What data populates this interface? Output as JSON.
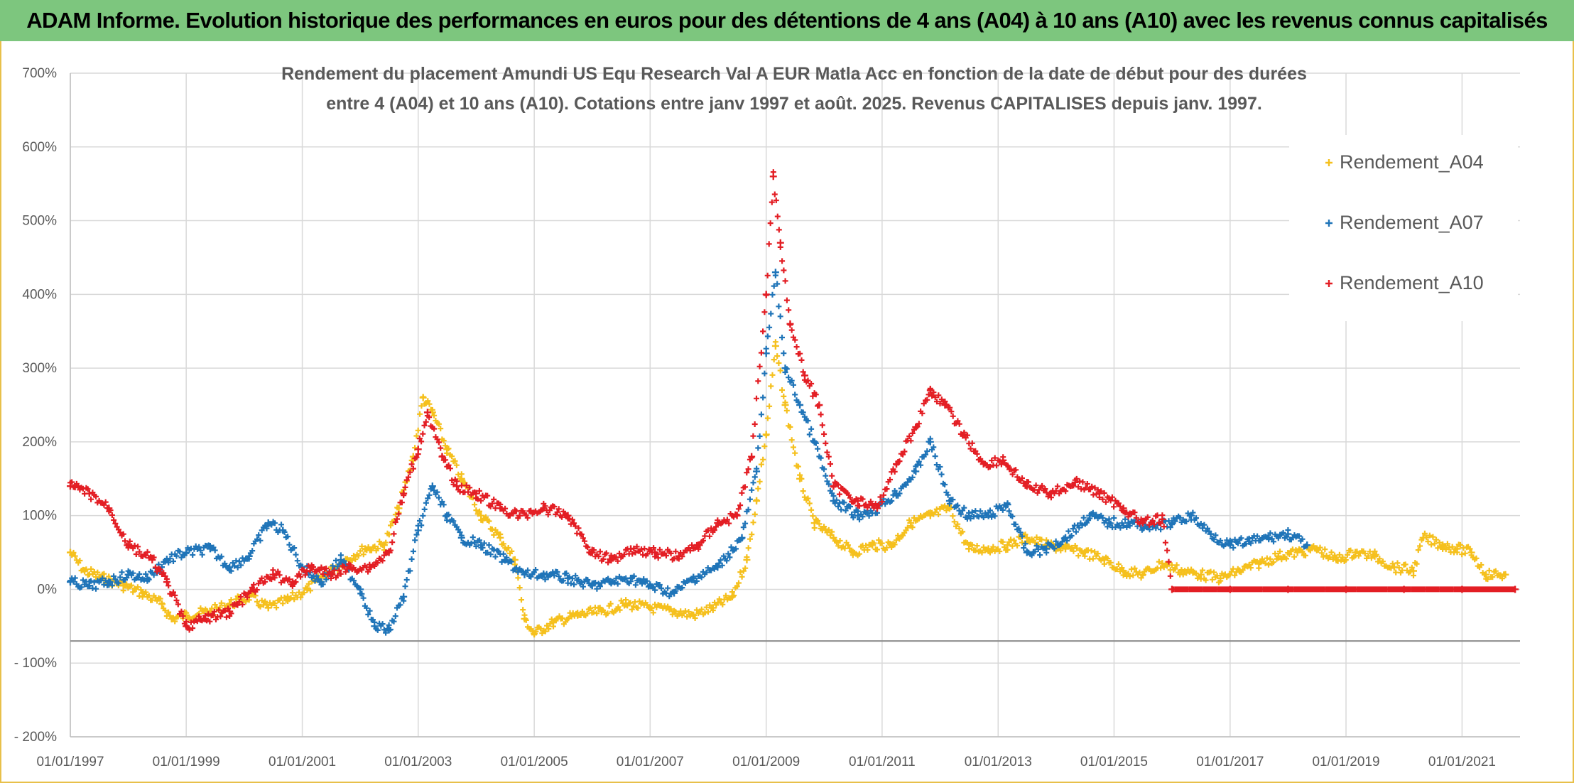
{
  "banner": "ADAM Informe. Evolution historique des performances en euros pour des détentions de 4 ans (A04) à 10 ans (A10) avec les revenus connus capitalisés",
  "chart_data": {
    "type": "scatter",
    "title_lines": [
      "Rendement du placement Amundi US Equ Research Val A EUR Matla Acc en fonction de la date de début pour des durées",
      "entre 4 (A04) et 10 ans (A10). Cotations entre janv 1997 et août. 2025. Revenus CAPITALISES depuis janv. 1997."
    ],
    "xlabel": "",
    "ylabel": "",
    "xlim": [
      "1997-01-01",
      "2022-01-01"
    ],
    "ylim": [
      -200,
      700
    ],
    "x_tick_labels": [
      "01/01/1997",
      "01/01/1999",
      "01/01/2001",
      "01/01/2003",
      "01/01/2005",
      "01/01/2007",
      "01/01/2009",
      "01/01/2011",
      "01/01/2013",
      "01/01/2015",
      "01/01/2017",
      "01/01/2019",
      "01/01/2021"
    ],
    "y_tick_labels": [
      "700%",
      "600%",
      "500%",
      "400%",
      "300%",
      "200%",
      "100%",
      "0%",
      "- 100%",
      "- 200%"
    ],
    "y_tick_values": [
      700,
      600,
      500,
      400,
      300,
      200,
      100,
      0,
      -100,
      -200
    ],
    "grid": true,
    "legend_position": "top-right",
    "marker": "+",
    "series": [
      {
        "name": "Rendement_A04",
        "color": "#f5c01d",
        "points": [
          [
            "1997-01-01",
            50
          ],
          [
            "1997-04-01",
            25
          ],
          [
            "1997-08-01",
            15
          ],
          [
            "1997-12-01",
            5
          ],
          [
            "1998-04-01",
            -5
          ],
          [
            "1998-08-01",
            -20
          ],
          [
            "1998-10-01",
            -40
          ],
          [
            "1999-01-01",
            -35
          ],
          [
            "1999-06-01",
            -30
          ],
          [
            "1999-10-01",
            -20
          ],
          [
            "2000-02-01",
            -10
          ],
          [
            "2000-06-01",
            -25
          ],
          [
            "2000-10-01",
            -15
          ],
          [
            "2001-02-01",
            0
          ],
          [
            "2001-06-01",
            20
          ],
          [
            "2001-10-01",
            40
          ],
          [
            "2002-02-01",
            55
          ],
          [
            "2002-06-01",
            60
          ],
          [
            "2002-09-01",
            110
          ],
          [
            "2002-12-01",
            180
          ],
          [
            "2003-02-01",
            260
          ],
          [
            "2003-04-01",
            240
          ],
          [
            "2003-07-01",
            190
          ],
          [
            "2003-10-01",
            150
          ],
          [
            "2004-02-01",
            100
          ],
          [
            "2004-06-01",
            70
          ],
          [
            "2004-09-01",
            40
          ],
          [
            "2004-11-01",
            -40
          ],
          [
            "2005-01-01",
            -60
          ],
          [
            "2005-05-01",
            -45
          ],
          [
            "2005-10-01",
            -35
          ],
          [
            "2006-03-01",
            -30
          ],
          [
            "2006-08-01",
            -20
          ],
          [
            "2007-01-01",
            -25
          ],
          [
            "2007-06-01",
            -30
          ],
          [
            "2007-10-01",
            -35
          ],
          [
            "2008-02-01",
            -25
          ],
          [
            "2008-06-01",
            -10
          ],
          [
            "2008-09-01",
            40
          ],
          [
            "2008-11-01",
            120
          ],
          [
            "2009-01-01",
            210
          ],
          [
            "2009-03-01",
            330
          ],
          [
            "2009-05-01",
            250
          ],
          [
            "2009-08-01",
            150
          ],
          [
            "2009-11-01",
            90
          ],
          [
            "2010-03-01",
            70
          ],
          [
            "2010-07-01",
            50
          ],
          [
            "2010-11-01",
            60
          ],
          [
            "2011-03-01",
            60
          ],
          [
            "2011-07-01",
            90
          ],
          [
            "2011-11-01",
            100
          ],
          [
            "2012-03-01",
            110
          ],
          [
            "2012-07-01",
            55
          ],
          [
            "2012-11-01",
            55
          ],
          [
            "2013-03-01",
            60
          ],
          [
            "2013-07-01",
            70
          ],
          [
            "2013-11-01",
            60
          ],
          [
            "2014-03-01",
            55
          ],
          [
            "2014-07-01",
            50
          ],
          [
            "2014-11-01",
            40
          ],
          [
            "2015-03-01",
            25
          ],
          [
            "2015-07-01",
            20
          ],
          [
            "2015-11-01",
            35
          ],
          [
            "2016-03-01",
            25
          ],
          [
            "2016-07-01",
            20
          ],
          [
            "2016-11-01",
            15
          ],
          [
            "2017-03-01",
            25
          ],
          [
            "2017-07-01",
            35
          ],
          [
            "2017-11-01",
            45
          ],
          [
            "2018-03-01",
            50
          ],
          [
            "2018-07-01",
            55
          ],
          [
            "2018-11-01",
            40
          ],
          [
            "2019-03-01",
            50
          ],
          [
            "2019-07-01",
            45
          ],
          [
            "2019-11-01",
            30
          ],
          [
            "2020-03-01",
            25
          ],
          [
            "2020-05-01",
            70
          ],
          [
            "2020-09-01",
            60
          ],
          [
            "2020-12-01",
            55
          ],
          [
            "2021-03-01",
            50
          ],
          [
            "2021-06-01",
            20
          ],
          [
            "2021-10-01",
            20
          ]
        ]
      },
      {
        "name": "Rendement_A07",
        "color": "#1f74b8",
        "points": [
          [
            "1997-01-01",
            10
          ],
          [
            "1997-05-01",
            5
          ],
          [
            "1997-09-01",
            10
          ],
          [
            "1998-01-01",
            20
          ],
          [
            "1998-05-01",
            15
          ],
          [
            "1998-09-01",
            40
          ],
          [
            "1999-01-01",
            50
          ],
          [
            "1999-06-01",
            55
          ],
          [
            "1999-10-01",
            30
          ],
          [
            "2000-02-01",
            45
          ],
          [
            "2000-06-01",
            90
          ],
          [
            "2000-09-01",
            80
          ],
          [
            "2001-01-01",
            30
          ],
          [
            "2001-05-01",
            10
          ],
          [
            "2001-09-01",
            40
          ],
          [
            "2002-01-01",
            0
          ],
          [
            "2002-04-01",
            -50
          ],
          [
            "2002-07-01",
            -55
          ],
          [
            "2002-10-01",
            -10
          ],
          [
            "2003-01-01",
            80
          ],
          [
            "2003-04-01",
            140
          ],
          [
            "2003-07-01",
            100
          ],
          [
            "2003-10-01",
            70
          ],
          [
            "2004-02-01",
            60
          ],
          [
            "2004-07-01",
            40
          ],
          [
            "2004-11-01",
            20
          ],
          [
            "2005-03-01",
            20
          ],
          [
            "2005-08-01",
            15
          ],
          [
            "2006-01-01",
            5
          ],
          [
            "2006-05-01",
            10
          ],
          [
            "2006-09-01",
            15
          ],
          [
            "2007-01-01",
            5
          ],
          [
            "2007-06-01",
            -5
          ],
          [
            "2007-10-01",
            15
          ],
          [
            "2008-03-01",
            30
          ],
          [
            "2008-08-01",
            70
          ],
          [
            "2008-11-01",
            160
          ],
          [
            "2009-01-01",
            320
          ],
          [
            "2009-03-01",
            430
          ],
          [
            "2009-05-01",
            300
          ],
          [
            "2009-08-01",
            250
          ],
          [
            "2009-11-01",
            200
          ],
          [
            "2010-03-01",
            120
          ],
          [
            "2010-08-01",
            100
          ],
          [
            "2010-12-01",
            110
          ],
          [
            "2011-04-01",
            130
          ],
          [
            "2011-08-01",
            160
          ],
          [
            "2011-11-01",
            200
          ],
          [
            "2012-03-01",
            120
          ],
          [
            "2012-07-01",
            100
          ],
          [
            "2012-11-01",
            100
          ],
          [
            "2013-03-01",
            115
          ],
          [
            "2013-07-01",
            50
          ],
          [
            "2013-11-01",
            55
          ],
          [
            "2014-03-01",
            70
          ],
          [
            "2014-08-01",
            100
          ],
          [
            "2014-12-01",
            90
          ],
          [
            "2015-04-01",
            90
          ],
          [
            "2015-09-01",
            85
          ],
          [
            "2016-01-01",
            90
          ],
          [
            "2016-05-01",
            100
          ],
          [
            "2016-09-01",
            75
          ],
          [
            "2017-01-01",
            60
          ],
          [
            "2017-05-01",
            65
          ],
          [
            "2017-09-01",
            70
          ],
          [
            "2018-01-01",
            75
          ],
          [
            "2018-05-01",
            60
          ]
        ]
      },
      {
        "name": "Rendement_A10",
        "color": "#e31e24",
        "points": [
          [
            "1997-01-01",
            140
          ],
          [
            "1997-05-01",
            130
          ],
          [
            "1997-09-01",
            110
          ],
          [
            "1998-01-01",
            60
          ],
          [
            "1998-06-01",
            40
          ],
          [
            "1998-09-01",
            10
          ],
          [
            "1999-01-01",
            -50
          ],
          [
            "1999-05-01",
            -40
          ],
          [
            "1999-10-01",
            -30
          ],
          [
            "2000-03-01",
            0
          ],
          [
            "2000-07-01",
            20
          ],
          [
            "2000-11-01",
            10
          ],
          [
            "2001-03-01",
            30
          ],
          [
            "2001-07-01",
            20
          ],
          [
            "2001-11-01",
            30
          ],
          [
            "2002-03-01",
            30
          ],
          [
            "2002-07-01",
            50
          ],
          [
            "2002-10-01",
            130
          ],
          [
            "2003-01-01",
            190
          ],
          [
            "2003-03-01",
            240
          ],
          [
            "2003-06-01",
            180
          ],
          [
            "2003-09-01",
            140
          ],
          [
            "2004-01-01",
            130
          ],
          [
            "2004-06-01",
            110
          ],
          [
            "2004-10-01",
            100
          ],
          [
            "2005-03-01",
            110
          ],
          [
            "2005-08-01",
            100
          ],
          [
            "2006-01-01",
            50
          ],
          [
            "2006-05-01",
            40
          ],
          [
            "2006-09-01",
            55
          ],
          [
            "2007-02-01",
            50
          ],
          [
            "2007-07-01",
            45
          ],
          [
            "2007-11-01",
            60
          ],
          [
            "2008-03-01",
            90
          ],
          [
            "2008-07-01",
            100
          ],
          [
            "2008-10-01",
            180
          ],
          [
            "2009-01-01",
            400
          ],
          [
            "2009-02-15",
            560
          ],
          [
            "2009-04-01",
            470
          ],
          [
            "2009-06-01",
            360
          ],
          [
            "2009-09-01",
            290
          ],
          [
            "2009-12-01",
            250
          ],
          [
            "2010-03-01",
            140
          ],
          [
            "2010-08-01",
            120
          ],
          [
            "2010-12-01",
            110
          ],
          [
            "2011-04-01",
            170
          ],
          [
            "2011-08-01",
            220
          ],
          [
            "2011-11-01",
            270
          ],
          [
            "2012-02-01",
            250
          ],
          [
            "2012-06-01",
            210
          ],
          [
            "2012-10-01",
            170
          ],
          [
            "2013-02-01",
            175
          ],
          [
            "2013-07-01",
            140
          ],
          [
            "2013-12-01",
            130
          ],
          [
            "2014-05-01",
            145
          ],
          [
            "2014-10-01",
            130
          ],
          [
            "2015-03-01",
            110
          ],
          [
            "2015-07-01",
            90
          ],
          [
            "2015-11-01",
            95
          ],
          [
            "2016-01-01",
            0
          ],
          [
            "2017-01-01",
            0
          ],
          [
            "2018-01-01",
            0
          ],
          [
            "2019-01-01",
            0
          ],
          [
            "2020-01-01",
            0
          ],
          [
            "2021-01-01",
            0
          ],
          [
            "2021-12-01",
            0
          ]
        ]
      }
    ]
  }
}
